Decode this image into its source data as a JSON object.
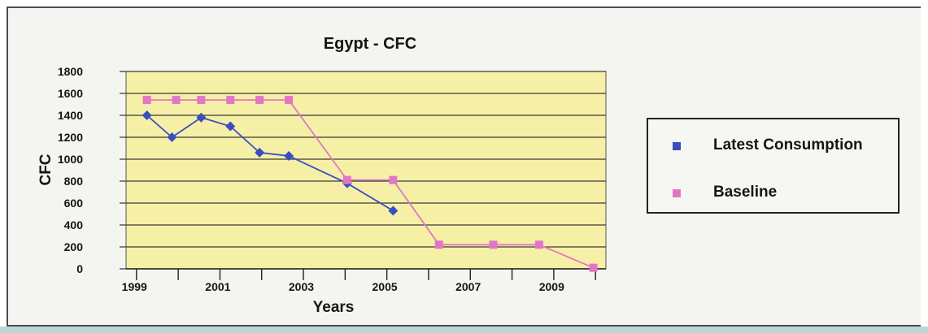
{
  "chart_data": {
    "type": "line",
    "title": "Egypt - CFC",
    "xlabel": "Years",
    "ylabel": "CFC",
    "ylim": [
      0,
      1800
    ],
    "yticks": [
      0,
      200,
      400,
      600,
      800,
      1000,
      1200,
      1400,
      1600,
      1800
    ],
    "xlim": [
      1998.8,
      2010.3
    ],
    "xtick_labels": [
      "1999",
      "2001",
      "2003",
      "2005",
      "2007",
      "2009"
    ],
    "xtick_positions": [
      1999,
      2001,
      2003,
      2005,
      2007,
      2009
    ],
    "grid": "horizontal",
    "legend_position": "right",
    "series": [
      {
        "name": "Latest Consumption",
        "color": "#3a4ec0",
        "marker": "diamond",
        "x": [
          1999.3,
          1999.9,
          2000.6,
          2001.3,
          2002.0,
          2002.7,
          2004.1,
          2005.2
        ],
        "y": [
          1400,
          1200,
          1380,
          1300,
          1060,
          1030,
          780,
          530
        ]
      },
      {
        "name": "Baseline",
        "color": "#e276c6",
        "marker": "square",
        "x": [
          1999.3,
          2000.0,
          2000.6,
          2001.3,
          2002.0,
          2002.7,
          2004.1,
          2005.2,
          2006.3,
          2007.6,
          2008.7,
          2010.0
        ],
        "y": [
          1540,
          1540,
          1540,
          1540,
          1540,
          1540,
          810,
          810,
          220,
          220,
          220,
          10
        ]
      }
    ]
  },
  "colors": {
    "plot_background": "#f5f0a6",
    "gridline": "#3a3a3a"
  }
}
